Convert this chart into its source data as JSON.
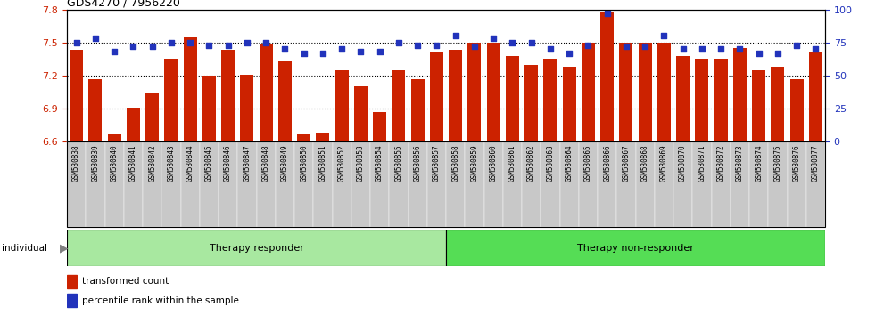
{
  "title": "GDS4270 / 7956220",
  "samples": [
    "GSM530838",
    "GSM530839",
    "GSM530840",
    "GSM530841",
    "GSM530842",
    "GSM530843",
    "GSM530844",
    "GSM530845",
    "GSM530846",
    "GSM530847",
    "GSM530848",
    "GSM530849",
    "GSM530850",
    "GSM530851",
    "GSM530852",
    "GSM530853",
    "GSM530854",
    "GSM530855",
    "GSM530856",
    "GSM530857",
    "GSM530858",
    "GSM530859",
    "GSM530860",
    "GSM530861",
    "GSM530862",
    "GSM530863",
    "GSM530864",
    "GSM530865",
    "GSM530866",
    "GSM530867",
    "GSM530868",
    "GSM530869",
    "GSM530870",
    "GSM530871",
    "GSM530872",
    "GSM530873",
    "GSM530874",
    "GSM530875",
    "GSM530876",
    "GSM530877"
  ],
  "bar_values": [
    7.43,
    7.17,
    6.67,
    6.91,
    7.04,
    7.35,
    7.55,
    7.2,
    7.43,
    7.21,
    7.48,
    7.33,
    6.67,
    6.68,
    7.25,
    7.1,
    6.87,
    7.25,
    7.17,
    7.42,
    7.43,
    7.5,
    7.5,
    7.38,
    7.3,
    7.35,
    7.28,
    7.5,
    7.78,
    7.5,
    7.5,
    7.5,
    7.38,
    7.35,
    7.35,
    7.45,
    7.25,
    7.28,
    7.17,
    7.42
  ],
  "percentile_values": [
    75,
    78,
    68,
    72,
    72,
    75,
    75,
    73,
    73,
    75,
    75,
    70,
    67,
    67,
    70,
    68,
    68,
    75,
    73,
    73,
    80,
    72,
    78,
    75,
    75,
    70,
    67,
    73,
    97,
    72,
    72,
    80,
    70,
    70,
    70,
    70,
    67,
    67,
    73,
    70
  ],
  "group_labels": [
    "Therapy responder",
    "Therapy non-responder"
  ],
  "responder_count": 20,
  "left_ylim": [
    6.6,
    7.8
  ],
  "right_ylim": [
    0,
    100
  ],
  "left_yticks": [
    6.6,
    6.9,
    7.2,
    7.5,
    7.8
  ],
  "right_yticks": [
    0,
    25,
    50,
    75,
    100
  ],
  "bar_color": "#CC2200",
  "percentile_color": "#2233BB",
  "group_bg_color_responder": "#A8E8A0",
  "group_bg_color_nonresponder": "#55DD55",
  "tick_label_bg": "#C8C8C8",
  "legend_bar_label": "transformed count",
  "legend_pct_label": "percentile rank within the sample",
  "individual_label": "individual"
}
